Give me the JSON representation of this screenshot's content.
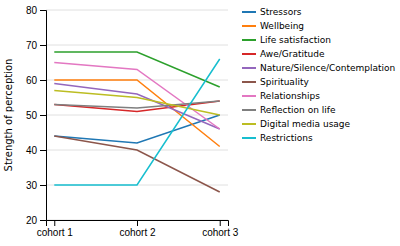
{
  "chart_data": {
    "type": "line",
    "categories": [
      "cohort 1",
      "cohort 2",
      "cohort 3"
    ],
    "series": [
      {
        "name": "Stressors",
        "values": [
          44,
          42,
          50
        ]
      },
      {
        "name": "Wellbeing",
        "values": [
          60,
          60,
          41
        ]
      },
      {
        "name": "Life satisfaction",
        "values": [
          68,
          68,
          58
        ]
      },
      {
        "name": "Awe/Gratitude",
        "values": [
          53,
          51,
          54
        ]
      },
      {
        "name": "Nature/Silence/Contemplation",
        "values": [
          59,
          56,
          46
        ]
      },
      {
        "name": "Spirituality",
        "values": [
          44,
          40,
          28
        ]
      },
      {
        "name": "Relationships",
        "values": [
          65,
          63,
          46
        ]
      },
      {
        "name": "Reflection on life",
        "values": [
          53,
          52,
          54
        ]
      },
      {
        "name": "Digital media usage",
        "values": [
          57,
          55,
          50
        ]
      },
      {
        "name": "Restrictions",
        "values": [
          30,
          30,
          66
        ]
      }
    ],
    "y_label": "Strength of perception",
    "ylim": [
      20,
      80
    ],
    "yticks": [
      20,
      30,
      40,
      50,
      60,
      70,
      80
    ],
    "grid": true,
    "legend": "right"
  }
}
